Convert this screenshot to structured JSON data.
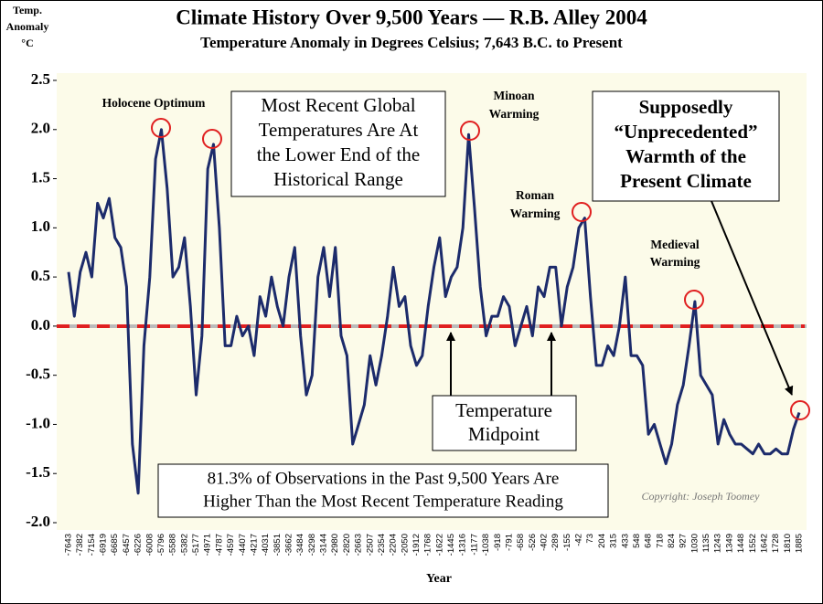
{
  "chart_data": {
    "type": "line",
    "title": "Climate History Over 9,500 Years — R.B. Alley 2004",
    "subtitle": "Temperature Anomaly in Degrees Celsius; 7,643 B.C. to Present",
    "y_label": [
      "Temp.",
      "Anomaly",
      "°C"
    ],
    "x_label": "Year",
    "categories": [
      "-7643",
      null,
      "-7382",
      null,
      "-7154",
      null,
      "-6919",
      null,
      "-6685",
      null,
      "-6457",
      null,
      "-6226",
      null,
      "-6008",
      null,
      "-5796",
      null,
      "-5588",
      null,
      "-5382",
      null,
      "-5177",
      null,
      "-4971",
      null,
      "-4787",
      null,
      "-4597",
      null,
      "-4407",
      null,
      "-4217",
      null,
      "-4031",
      null,
      "-3851",
      null,
      "-3662",
      null,
      "-3484",
      null,
      "-3298",
      null,
      "-3144",
      null,
      "-2980",
      null,
      "-2820",
      null,
      "-2663",
      null,
      "-2507",
      null,
      "-2354",
      null,
      "-2204",
      null,
      "-2050",
      null,
      "-1912",
      null,
      "-1768",
      null,
      "-1622",
      null,
      "-1445",
      null,
      "-1316",
      null,
      "-1177",
      null,
      "-1038",
      null,
      "-918",
      null,
      "-791",
      null,
      "-658",
      null,
      "-526",
      null,
      "-402",
      null,
      "-289",
      null,
      "-155",
      null,
      "-42",
      null,
      "73",
      null,
      "204",
      null,
      "315",
      null,
      "433",
      null,
      "548",
      null,
      "648",
      null,
      "718",
      null,
      "824",
      null,
      "927",
      null,
      "1030",
      null,
      "1135",
      null,
      "1243",
      null,
      "1349",
      null,
      "1448",
      null,
      "1552",
      null,
      "1642",
      null,
      "1728",
      null,
      "1810",
      null,
      "1885"
    ],
    "series": [
      {
        "name": "Temperature Anomaly",
        "color": "#1c2b6b",
        "values": [
          0.55,
          0.1,
          0.55,
          0.75,
          0.5,
          1.25,
          1.1,
          1.3,
          0.9,
          0.8,
          0.4,
          -1.2,
          -1.7,
          -0.2,
          0.5,
          1.7,
          2.0,
          1.4,
          0.5,
          0.6,
          0.9,
          0.2,
          -0.7,
          -0.1,
          1.6,
          1.85,
          1.0,
          -0.2,
          -0.2,
          0.1,
          -0.1,
          0.0,
          -0.3,
          0.3,
          0.1,
          0.5,
          0.2,
          0.0,
          0.5,
          0.8,
          -0.1,
          -0.7,
          -0.5,
          0.5,
          0.8,
          0.3,
          0.8,
          -0.1,
          -0.3,
          -1.2,
          -1.0,
          -0.8,
          -0.3,
          -0.6,
          -0.3,
          0.1,
          0.6,
          0.2,
          0.3,
          -0.2,
          -0.4,
          -0.3,
          0.2,
          0.6,
          0.9,
          0.3,
          0.5,
          0.6,
          1.0,
          1.95,
          1.2,
          0.4,
          -0.1,
          0.1,
          0.1,
          0.3,
          0.2,
          -0.2,
          0.0,
          0.2,
          -0.1,
          0.4,
          0.3,
          0.6,
          0.6,
          0.0,
          0.4,
          0.6,
          1.0,
          1.1,
          0.3,
          -0.4,
          -0.4,
          -0.2,
          -0.3,
          0.0,
          0.5,
          -0.3,
          -0.3,
          -0.4,
          -1.1,
          -1.0,
          -1.2,
          -1.4,
          -1.2,
          -0.8,
          -0.6,
          -0.2,
          0.25,
          -0.5,
          -0.6,
          -0.7,
          -1.2,
          -0.95,
          -1.1,
          -1.2,
          -1.2,
          -1.25,
          -1.3,
          -1.2,
          -1.3,
          -1.3,
          -1.25,
          -1.3,
          -1.3,
          -1.05,
          -0.88
        ]
      }
    ],
    "ylim": [
      -2,
      2.5
    ],
    "yticks": [
      {
        "value": -2,
        "label": "-2.0"
      },
      -1.5,
      {
        "value": -1,
        "label": "-1.0"
      },
      -0.5,
      {
        "value": 0,
        "label": "0.0"
      },
      0.5,
      {
        "value": 1,
        "label": "1.0"
      },
      1.5,
      {
        "value": 2,
        "label": "2.0"
      },
      2.5
    ],
    "annotations": {
      "holocene": "Holocene Optimum",
      "minoan": [
        "Minoan",
        "Warming"
      ],
      "roman": [
        "Roman",
        "Warming"
      ],
      "medieval": [
        "Medieval",
        "Warming"
      ],
      "recent": [
        "Most Recent Global",
        "Temperatures Are At",
        "the Lower End of the",
        "Historical Range"
      ],
      "unprecedented": [
        "Supposedly",
        "“Unprecedented”",
        "Warmth of the",
        "Present Climate"
      ],
      "midpoint": [
        "Temperature",
        "Midpoint"
      ],
      "observations": [
        "81.3% of Observations in the Past 9,500 Years Are",
        "Higher Than the Most Recent Temperature Reading"
      ],
      "copyright": "Copyright: Joseph Toomey"
    }
  }
}
